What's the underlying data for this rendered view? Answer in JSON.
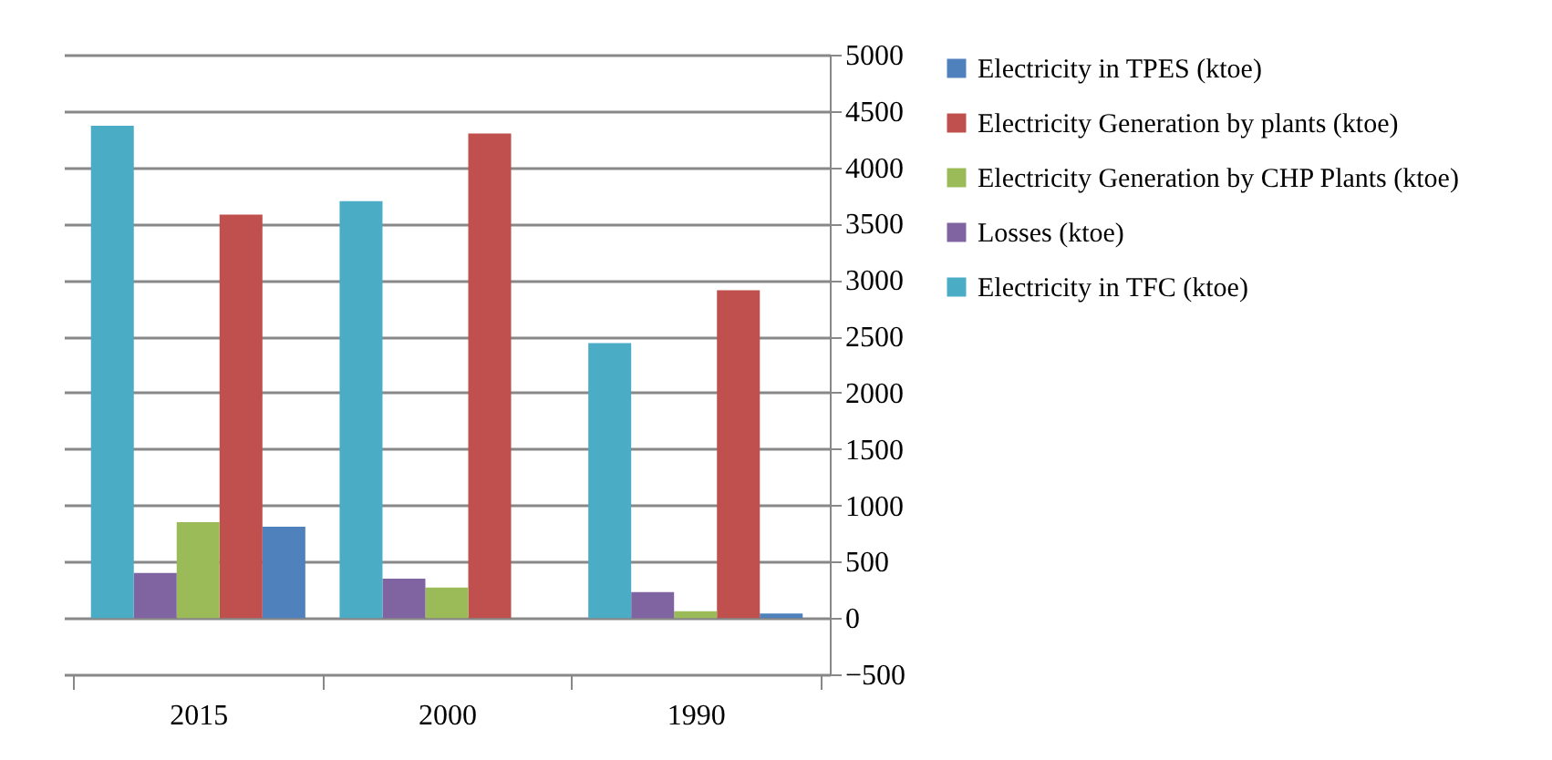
{
  "chart_data": {
    "type": "bar",
    "categories": [
      "2015",
      "2000",
      "1990"
    ],
    "series": [
      {
        "name": "Electricity in TPES (ktoe)",
        "color": "#4f81bd",
        "values": [
          810,
          0,
          40
        ]
      },
      {
        "name": "Electricity Generation by plants (ktoe)",
        "color": "#c0504d",
        "values": [
          3580,
          4300,
          2910
        ]
      },
      {
        "name": "Electricity Generation by CHP Plants (ktoe)",
        "color": "#9bbb59",
        "values": [
          850,
          270,
          60
        ]
      },
      {
        "name": "Losses (ktoe)",
        "color": "#8064a2",
        "values": [
          400,
          350,
          230
        ]
      },
      {
        "name": "Electricity in TFC (ktoe)",
        "color": "#4bacc6",
        "values": [
          4370,
          3700,
          2440
        ]
      }
    ],
    "ylim": [
      -500,
      5000
    ],
    "yticks": [
      -500,
      0,
      500,
      1000,
      1500,
      2000,
      2500,
      3000,
      3500,
      4000,
      4500,
      5000
    ],
    "grid": "y",
    "legend": "right"
  }
}
